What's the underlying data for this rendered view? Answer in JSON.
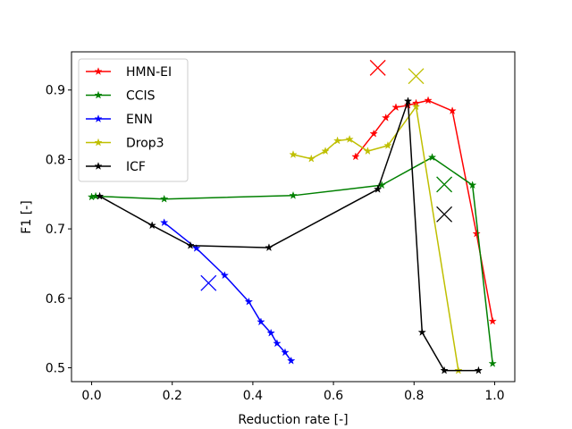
{
  "chart_data": {
    "type": "line",
    "title": "",
    "xlabel": "Reduction rate [-]",
    "ylabel": "F1 [-]",
    "xlim": [
      -0.05,
      1.05
    ],
    "ylim": [
      0.48,
      0.955
    ],
    "xticks": [
      0.0,
      0.2,
      0.4,
      0.6,
      0.8,
      1.0
    ],
    "xtick_labels": [
      "0.0",
      "0.2",
      "0.4",
      "0.6",
      "0.8",
      "1.0"
    ],
    "yticks": [
      0.5,
      0.6,
      0.7,
      0.8,
      0.9
    ],
    "ytick_labels": [
      "0.5",
      "0.6",
      "0.7",
      "0.8",
      "0.9"
    ],
    "grid": false,
    "legend_position": "upper-left",
    "series": [
      {
        "name": "HMN-EI",
        "color": "#ff0000",
        "points": [
          [
            0.655,
            0.804
          ],
          [
            0.7,
            0.837
          ],
          [
            0.73,
            0.86
          ],
          [
            0.755,
            0.875
          ],
          [
            0.785,
            0.878
          ],
          [
            0.805,
            0.881
          ],
          [
            0.835,
            0.885
          ],
          [
            0.895,
            0.87
          ],
          [
            0.955,
            0.693
          ],
          [
            0.995,
            0.567
          ]
        ],
        "reference": [
          0.71,
          0.932
        ]
      },
      {
        "name": "CCIS",
        "color": "#008000",
        "points": [
          [
            0.0,
            0.746
          ],
          [
            0.01,
            0.747
          ],
          [
            0.18,
            0.743
          ],
          [
            0.5,
            0.748
          ],
          [
            0.72,
            0.763
          ],
          [
            0.845,
            0.803
          ],
          [
            0.945,
            0.763
          ],
          [
            0.995,
            0.506
          ]
        ],
        "reference": [
          0.875,
          0.764
        ]
      },
      {
        "name": "ENN",
        "color": "#0000ff",
        "points": [
          [
            0.18,
            0.709
          ],
          [
            0.26,
            0.672
          ],
          [
            0.33,
            0.633
          ],
          [
            0.39,
            0.595
          ],
          [
            0.42,
            0.566
          ],
          [
            0.445,
            0.55
          ],
          [
            0.46,
            0.535
          ],
          [
            0.48,
            0.522
          ],
          [
            0.495,
            0.51
          ]
        ],
        "reference": [
          0.29,
          0.622
        ]
      },
      {
        "name": "Drop3",
        "color": "#bfbf00",
        "points": [
          [
            0.5,
            0.807
          ],
          [
            0.545,
            0.801
          ],
          [
            0.58,
            0.812
          ],
          [
            0.61,
            0.827
          ],
          [
            0.64,
            0.829
          ],
          [
            0.685,
            0.812
          ],
          [
            0.735,
            0.82
          ],
          [
            0.805,
            0.876
          ],
          [
            0.91,
            0.496
          ]
        ],
        "reference": [
          0.805,
          0.92
        ]
      },
      {
        "name": "ICF",
        "color": "#000000",
        "points": [
          [
            0.02,
            0.747
          ],
          [
            0.15,
            0.705
          ],
          [
            0.245,
            0.676
          ],
          [
            0.44,
            0.673
          ],
          [
            0.71,
            0.757
          ],
          [
            0.785,
            0.884
          ],
          [
            0.82,
            0.551
          ],
          [
            0.875,
            0.496
          ],
          [
            0.96,
            0.496
          ]
        ],
        "reference": [
          0.875,
          0.721
        ]
      }
    ]
  }
}
